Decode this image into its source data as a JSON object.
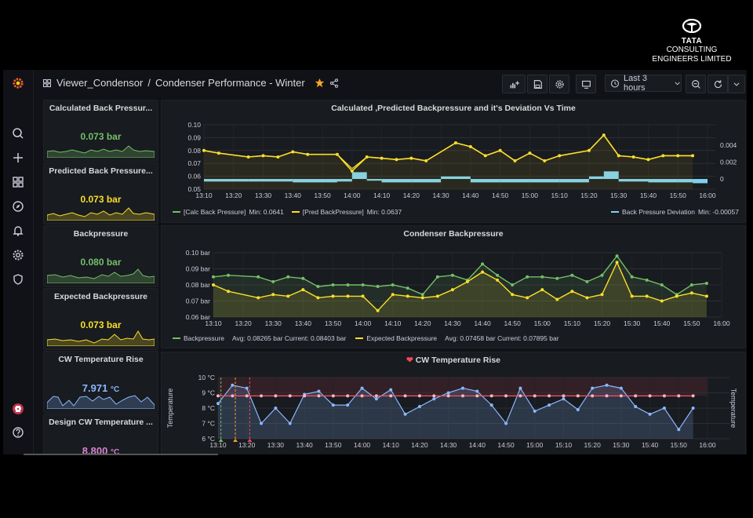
{
  "brand": {
    "line1": "TATA",
    "line2": "CONSULTING",
    "line3": "ENGINEERS LIMITED"
  },
  "breadcrumb": {
    "folder": "Viewer_Condensor",
    "separator": "/",
    "dashboard": "Condenser Performance - Winter"
  },
  "toolbar": {
    "time_range": "Last 3 hours"
  },
  "colors": {
    "green": "#73bf69",
    "yellow": "#fade2a",
    "cyan": "#8ab8ff",
    "deviation": "#7ed2f0",
    "blue": "#8ab8ff",
    "red": "#f2495c",
    "pink": "#ffb3c1"
  },
  "stats": [
    {
      "title": "Calculated Back Pressur...",
      "value": "0.073 bar",
      "color": "#73bf69"
    },
    {
      "title": "Predicted Back Pressure...",
      "value": "0.073 bar",
      "color": "#fade2a"
    },
    {
      "title": "Backpressure",
      "value": "0.080 bar",
      "color": "#73bf69"
    },
    {
      "title": "Expected Backpressure",
      "value": "0.073 bar",
      "color": "#fade2a"
    },
    {
      "title": "CW Temperature Rise",
      "value_num": "7.971",
      "value_unit": "°C",
      "color": "#8ab8ff"
    },
    {
      "title": "Design CW Temperature ...",
      "value_num": "8.800",
      "value_unit": "°C",
      "color": "#d683ce"
    }
  ],
  "panels": {
    "p1": {
      "title": "Calculated ,Predicted Backpressure and it's Deviation Vs Time",
      "legend": {
        "calc_name": "[Calc Back Pressure]",
        "calc_min": "Min: 0.0641",
        "pred_name": "[Pred BackPressure]",
        "pred_min": "Min: 0.0637",
        "dev_name": "Back Pressure Deviation",
        "dev_min": "Min: -0.00057"
      }
    },
    "p2": {
      "title": "Condenser Backpressure",
      "legend": {
        "bp_name": "Backpressure",
        "bp_stats": "Avg: 0.08265 bar   Current: 0.08403 bar",
        "exp_name": "Expected Backpressure",
        "exp_stats": "Avg: 0.07458 bar   Current: 0.07895 bar"
      }
    },
    "p3": {
      "title": "CW Temperature Rise"
    }
  },
  "chart_data": [
    {
      "type": "line",
      "title": "Calculated ,Predicted Backpressure and it's Deviation Vs Time",
      "x_ticks": [
        "13:10",
        "13:20",
        "13:30",
        "13:40",
        "13:50",
        "14:00",
        "14:10",
        "14:20",
        "14:30",
        "14:40",
        "14:50",
        "15:00",
        "15:10",
        "15:20",
        "15:30",
        "15:40",
        "15:50",
        "16:00"
      ],
      "y_ticks": [
        "0.10",
        "0.09",
        "0.08",
        "0.07",
        "0.06",
        "0.05"
      ],
      "ylim": [
        0.05,
        0.1
      ],
      "y2_ticks": [
        "0.004",
        "0.002",
        "0"
      ],
      "y2lim": [
        -0.0012,
        0.0064
      ],
      "series": [
        {
          "name": "[Calc Back Pressure]",
          "color": "#fade2a",
          "x": [
            "13:10",
            "13:15",
            "13:25",
            "13:30",
            "13:35",
            "13:40",
            "13:45",
            "13:55",
            "14:00",
            "14:05",
            "14:10",
            "14:15",
            "14:20",
            "14:25",
            "14:35",
            "14:40",
            "14:45",
            "14:50",
            "14:55",
            "15:00",
            "15:05",
            "15:10",
            "15:20",
            "15:25",
            "15:30",
            "15:35",
            "15:40",
            "15:45",
            "15:50",
            "15:55"
          ],
          "values": [
            0.08,
            0.078,
            0.075,
            0.076,
            0.075,
            0.079,
            0.077,
            0.077,
            0.064,
            0.075,
            0.074,
            0.073,
            0.074,
            0.072,
            0.086,
            0.083,
            0.076,
            0.08,
            0.072,
            0.078,
            0.072,
            0.076,
            0.08,
            0.092,
            0.076,
            0.075,
            0.073,
            0.076,
            0.076,
            0.076
          ]
        },
        {
          "name": "[Pred BackPressure]",
          "color": "#fade2a",
          "x": [
            "13:10",
            "13:15",
            "13:25",
            "13:30",
            "13:35",
            "13:40",
            "13:45",
            "13:55",
            "14:00",
            "14:05",
            "14:10",
            "14:15",
            "14:20",
            "14:25",
            "14:35",
            "14:40",
            "14:45",
            "14:50",
            "14:55",
            "15:00",
            "15:05",
            "15:10",
            "15:20",
            "15:25",
            "15:30",
            "15:35",
            "15:40",
            "15:45",
            "15:50",
            "15:55"
          ],
          "values": [
            0.08,
            0.078,
            0.075,
            0.076,
            0.075,
            0.079,
            0.077,
            0.077,
            0.066,
            0.075,
            0.074,
            0.073,
            0.074,
            0.072,
            0.086,
            0.083,
            0.076,
            0.08,
            0.072,
            0.078,
            0.072,
            0.076,
            0.08,
            0.092,
            0.076,
            0.075,
            0.073,
            0.076,
            0.076,
            0.076
          ]
        },
        {
          "name": "Back Pressure Deviation",
          "color": "#7ed2f0",
          "x": [
            "13:10",
            "13:25",
            "13:40",
            "13:55",
            "14:00",
            "14:05",
            "14:10",
            "14:20",
            "14:30",
            "14:40",
            "14:50",
            "15:00",
            "15:10",
            "15:20",
            "15:25",
            "15:30",
            "15:40",
            "15:50",
            "15:55"
          ],
          "values": [
            -0.0003,
            -0.0003,
            -0.0004,
            -0.0003,
            0.0008,
            -0.0002,
            -0.0004,
            -0.0004,
            0.0003,
            -0.0004,
            -0.0004,
            -0.0004,
            -0.0004,
            0.0003,
            0.0009,
            -0.0003,
            -0.0004,
            -0.0004,
            -0.0005
          ]
        }
      ]
    },
    {
      "type": "line",
      "title": "Condenser Backpressure",
      "x_ticks": [
        "13:10",
        "13:20",
        "13:30",
        "13:40",
        "13:50",
        "14:00",
        "14:10",
        "14:20",
        "14:30",
        "14:40",
        "14:50",
        "15:00",
        "15:10",
        "15:20",
        "15:30",
        "15:40",
        "15:50",
        "16:00"
      ],
      "y_ticks": [
        "0.10 bar",
        "0.09 bar",
        "0.08 bar",
        "0.07 bar",
        "0.06 bar"
      ],
      "ylim": [
        0.06,
        0.1
      ],
      "series": [
        {
          "name": "Backpressure",
          "color": "#73bf69",
          "x": [
            "13:10",
            "13:15",
            "13:25",
            "13:30",
            "13:35",
            "13:40",
            "13:45",
            "13:50",
            "13:55",
            "14:00",
            "14:05",
            "14:10",
            "14:15",
            "14:20",
            "14:25",
            "14:30",
            "14:35",
            "14:40",
            "14:45",
            "14:50",
            "14:55",
            "15:00",
            "15:05",
            "15:10",
            "15:15",
            "15:20",
            "15:25",
            "15:30",
            "15:35",
            "15:40",
            "15:45",
            "15:50",
            "15:55"
          ],
          "values": [
            0.085,
            0.086,
            0.085,
            0.082,
            0.085,
            0.084,
            0.079,
            0.08,
            0.08,
            0.08,
            0.079,
            0.08,
            0.078,
            0.074,
            0.085,
            0.086,
            0.083,
            0.093,
            0.086,
            0.08,
            0.085,
            0.085,
            0.084,
            0.086,
            0.082,
            0.086,
            0.098,
            0.085,
            0.083,
            0.08,
            0.074,
            0.08,
            0.081
          ]
        },
        {
          "name": "Expected Backpressure",
          "color": "#fade2a",
          "x": [
            "13:10",
            "13:15",
            "13:25",
            "13:30",
            "13:35",
            "13:40",
            "13:45",
            "13:50",
            "13:55",
            "14:00",
            "14:05",
            "14:10",
            "14:15",
            "14:20",
            "14:25",
            "14:30",
            "14:35",
            "14:40",
            "14:45",
            "14:50",
            "14:55",
            "15:00",
            "15:05",
            "15:10",
            "15:15",
            "15:20",
            "15:25",
            "15:30",
            "15:35",
            "15:40",
            "15:45",
            "15:50",
            "15:55"
          ],
          "values": [
            0.08,
            0.076,
            0.072,
            0.074,
            0.073,
            0.077,
            0.072,
            0.073,
            0.073,
            0.073,
            0.064,
            0.074,
            0.073,
            0.072,
            0.073,
            0.077,
            0.082,
            0.088,
            0.083,
            0.074,
            0.072,
            0.077,
            0.071,
            0.076,
            0.072,
            0.074,
            0.094,
            0.073,
            0.073,
            0.07,
            0.073,
            0.075,
            0.073
          ]
        }
      ]
    },
    {
      "type": "line",
      "title": "CW Temperature Rise",
      "ylabel": "Temperature",
      "y2label": "Temperature",
      "x_ticks": [
        "13:10",
        "13:20",
        "13:30",
        "13:40",
        "13:50",
        "14:00",
        "14:10",
        "14:20",
        "14:30",
        "14:40",
        "14:50",
        "15:00",
        "15:10",
        "15:20",
        "15:30",
        "15:40",
        "15:50",
        "16:00"
      ],
      "y_ticks": [
        "10 °C",
        "9 °C",
        "8 °C",
        "7 °C",
        "6 °C"
      ],
      "ylim": [
        6,
        10
      ],
      "series": [
        {
          "name": "CW Temperature Rise",
          "color": "#8ab8ff",
          "x": [
            "13:10",
            "13:15",
            "13:20",
            "13:25",
            "13:30",
            "13:35",
            "13:40",
            "13:45",
            "13:50",
            "13:55",
            "14:00",
            "14:05",
            "14:10",
            "14:15",
            "14:20",
            "14:25",
            "14:30",
            "14:35",
            "14:40",
            "14:45",
            "14:50",
            "14:55",
            "15:00",
            "15:05",
            "15:10",
            "15:15",
            "15:20",
            "15:25",
            "15:30",
            "15:35",
            "15:40",
            "15:45",
            "15:50",
            "15:55"
          ],
          "values": [
            8.3,
            9.5,
            9.3,
            7.0,
            8.0,
            7.0,
            8.9,
            9.1,
            8.2,
            8.2,
            9.3,
            8.6,
            9.2,
            7.6,
            8.1,
            8.6,
            9.0,
            9.3,
            9.1,
            8.2,
            7.0,
            9.3,
            7.8,
            8.2,
            8.6,
            7.9,
            9.3,
            9.5,
            9.3,
            8.1,
            7.6,
            8.0,
            6.6,
            8.0
          ]
        },
        {
          "name": "Design CW Temperature",
          "color": "#ffb3c1",
          "x": [
            "13:10",
            "13:15",
            "13:20",
            "13:25",
            "13:30",
            "13:35",
            "13:40",
            "13:45",
            "13:50",
            "13:55",
            "14:00",
            "14:05",
            "14:10",
            "14:15",
            "14:20",
            "14:25",
            "14:30",
            "14:35",
            "14:40",
            "14:45",
            "14:50",
            "14:55",
            "15:00",
            "15:05",
            "15:10",
            "15:15",
            "15:20",
            "15:25",
            "15:30",
            "15:35",
            "15:40",
            "15:45",
            "15:50",
            "15:55"
          ],
          "values": [
            8.8,
            8.8,
            8.8,
            8.8,
            8.8,
            8.8,
            8.8,
            8.8,
            8.8,
            8.8,
            8.8,
            8.8,
            8.8,
            8.8,
            8.8,
            8.8,
            8.8,
            8.8,
            8.8,
            8.8,
            8.8,
            8.8,
            8.8,
            8.8,
            8.8,
            8.8,
            8.8,
            8.8,
            8.8,
            8.8,
            8.8,
            8.8,
            8.8,
            8.8
          ]
        }
      ]
    }
  ]
}
